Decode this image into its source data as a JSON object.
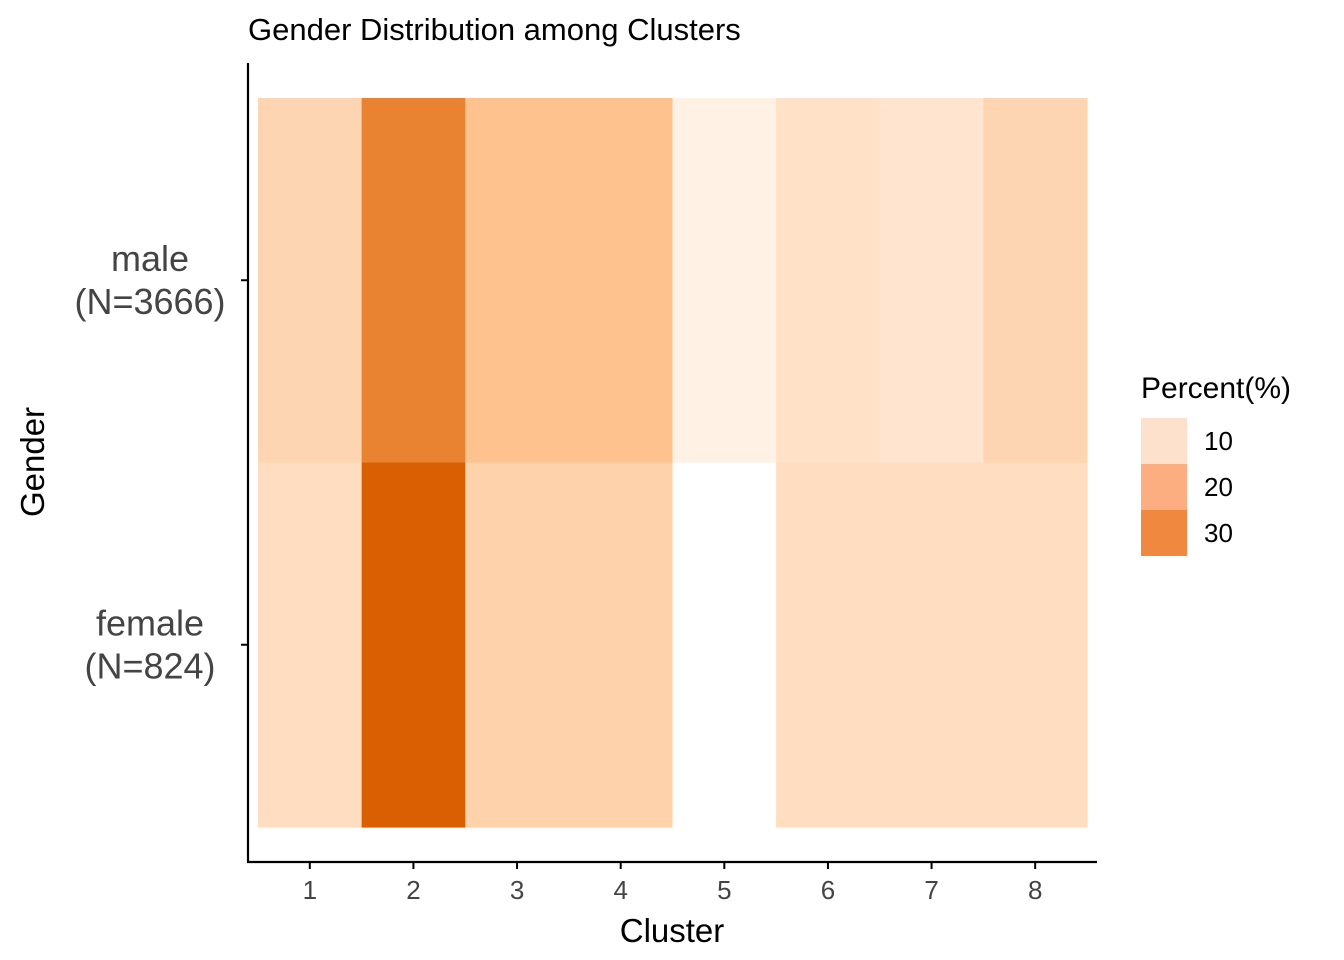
{
  "chart_data": {
    "type": "heatmap",
    "title": "Gender Distribution among Clusters",
    "xlabel": "Cluster",
    "ylabel": "Gender",
    "x_categories": [
      "1",
      "2",
      "3",
      "4",
      "5",
      "6",
      "7",
      "8"
    ],
    "y_categories": [
      "male\n(N=3666)",
      "female\n(N=824)"
    ],
    "values": [
      [
        8,
        28,
        13,
        13,
        1,
        5,
        4,
        8
      ],
      [
        6,
        36,
        9,
        9,
        0,
        6,
        6,
        6
      ]
    ],
    "color_scale": {
      "min": 0,
      "max": 36,
      "low_color": "#fff5eb",
      "mid_color": "#fdae6b",
      "high_color": "#d95f02"
    },
    "legend": {
      "title": "Percent(%)",
      "position": "right",
      "entries": [
        {
          "label": "10",
          "color": "#fee1cc"
        },
        {
          "label": "20",
          "color": "#fdae80"
        },
        {
          "label": "30",
          "color": "#f08840"
        }
      ]
    },
    "grid": false
  }
}
